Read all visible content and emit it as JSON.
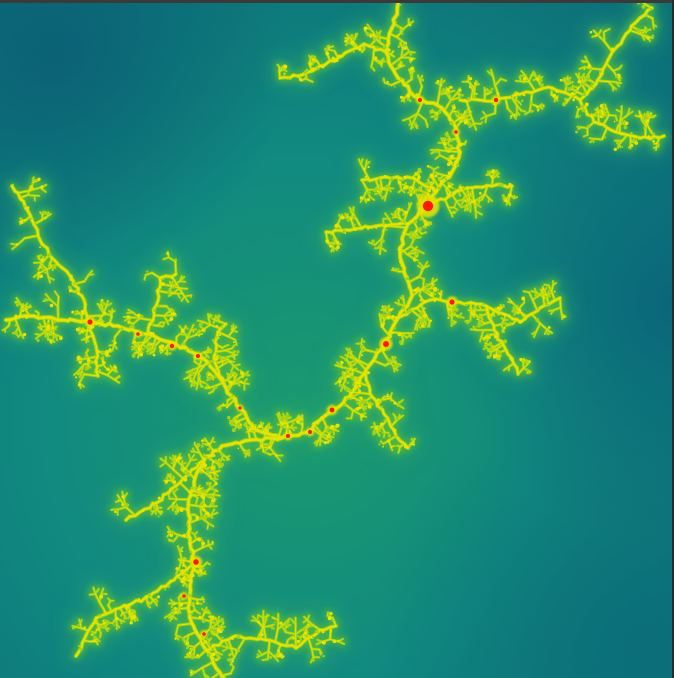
{
  "image": {
    "subject": "fractal-render",
    "colors": {
      "background_deep": "#0b6b78",
      "background_mid": "#118a80",
      "background_near": "#2aa56a",
      "glow_outer": "#57bb3c",
      "filament": "#9fd21a",
      "filament_core": "#e8e400",
      "hot_spot": "#ff1a00",
      "frame": "#1c1c1c"
    }
  }
}
